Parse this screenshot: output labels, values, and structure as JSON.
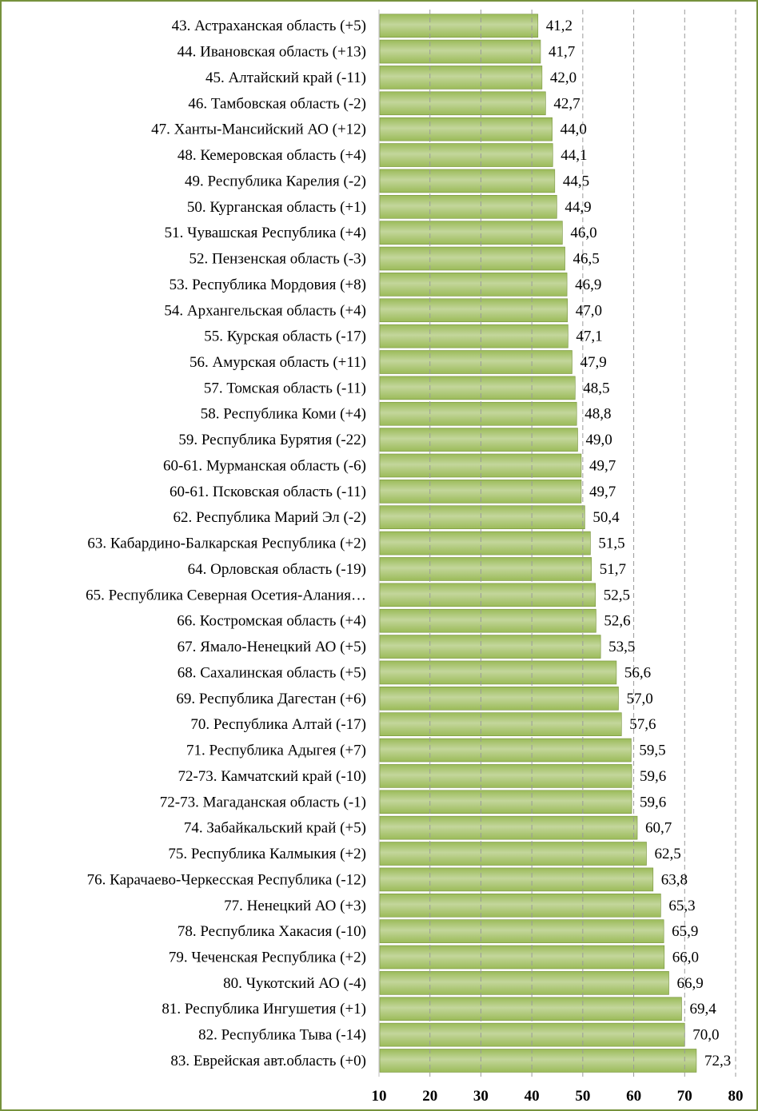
{
  "chart_data": {
    "type": "bar",
    "orientation": "horizontal",
    "categories": [
      "43. Астраханская область (+5)",
      "44. Ивановская область (+13)",
      "45. Алтайский край (-11)",
      "46. Тамбовская область (-2)",
      "47. Ханты-Мансийский АО (+12)",
      "48. Кемеровская область (+4)",
      "49. Республика Карелия (-2)",
      "50. Курганская область (+1)",
      "51. Чувашская Республика  (+4)",
      "52. Пензенская область (-3)",
      "53. Республика Мордовия (+8)",
      "54. Архангельская область (+4)",
      "55. Курская область (-17)",
      "56. Амурская область (+11)",
      "57. Томская область (-11)",
      "58. Республика Коми (+4)",
      "59. Республика Бурятия (-22)",
      "60-61. Мурманская область (-6)",
      "60-61. Псковская область (-11)",
      "62. Республика Марий Эл (-2)",
      "63. Кабардино-Балкарская Республика (+2)",
      "64. Орловская область (-19)",
      "65. Республика Северная Осетия-Алания…",
      "66. Костромская область (+4)",
      "67. Ямало-Ненецкий АО (+5)",
      "68. Сахалинская область (+5)",
      "69. Республика Дагестан (+6)",
      "70. Республика Алтай (-17)",
      "71. Республика Адыгея (+7)",
      "72-73. Камчатский край (-10)",
      "72-73. Магаданская область (-1)",
      "74. Забайкальский край (+5)",
      "75. Республика  Калмыкия (+2)",
      "76. Карачаево-Черкесская Республика (-12)",
      "77. Ненецкий АО (+3)",
      "78. Республика Хакасия (-10)",
      "79. Чеченская Республика (+2)",
      "80. Чукотский АО (-4)",
      "81. Республика Ингушетия (+1)",
      "82. Республика Тыва (-14)",
      "83. Еврейская авт.область (+0)"
    ],
    "values": [
      41.2,
      41.7,
      42.0,
      42.7,
      44.0,
      44.1,
      44.5,
      44.9,
      46.0,
      46.5,
      46.9,
      47.0,
      47.1,
      47.9,
      48.5,
      48.8,
      49.0,
      49.7,
      49.7,
      50.4,
      51.5,
      51.7,
      52.5,
      52.6,
      53.5,
      56.6,
      57.0,
      57.6,
      59.5,
      59.6,
      59.6,
      60.7,
      62.5,
      63.8,
      65.3,
      65.9,
      66.0,
      66.9,
      69.4,
      70.0,
      72.3
    ],
    "value_labels": [
      "41,2",
      "41,7",
      "42,0",
      "42,7",
      "44,0",
      "44,1",
      "44,5",
      "44,9",
      "46,0",
      "46,5",
      "46,9",
      "47,0",
      "47,1",
      "47,9",
      "48,5",
      "48,8",
      "49,0",
      "49,7",
      "49,7",
      "50,4",
      "51,5",
      "51,7",
      "52,5",
      "52,6",
      "53,5",
      "56,6",
      "57,0",
      "57,6",
      "59,5",
      "59,6",
      "59,6",
      "60,7",
      "62,5",
      "63,8",
      "65,3",
      "65,9",
      "66,0",
      "66,9",
      "69,4",
      "70,0",
      "72,3"
    ],
    "xlim": [
      10,
      80
    ],
    "xticks": [
      10,
      20,
      30,
      40,
      50,
      60,
      70,
      80
    ],
    "gridlines": "vertical dashed",
    "bar_color": "#9bbb59",
    "bar_color_light": "#c3d69b",
    "bar_color_dark": "#76923c",
    "border_color": "#76923c",
    "grid_color": "#9a9a9a"
  }
}
